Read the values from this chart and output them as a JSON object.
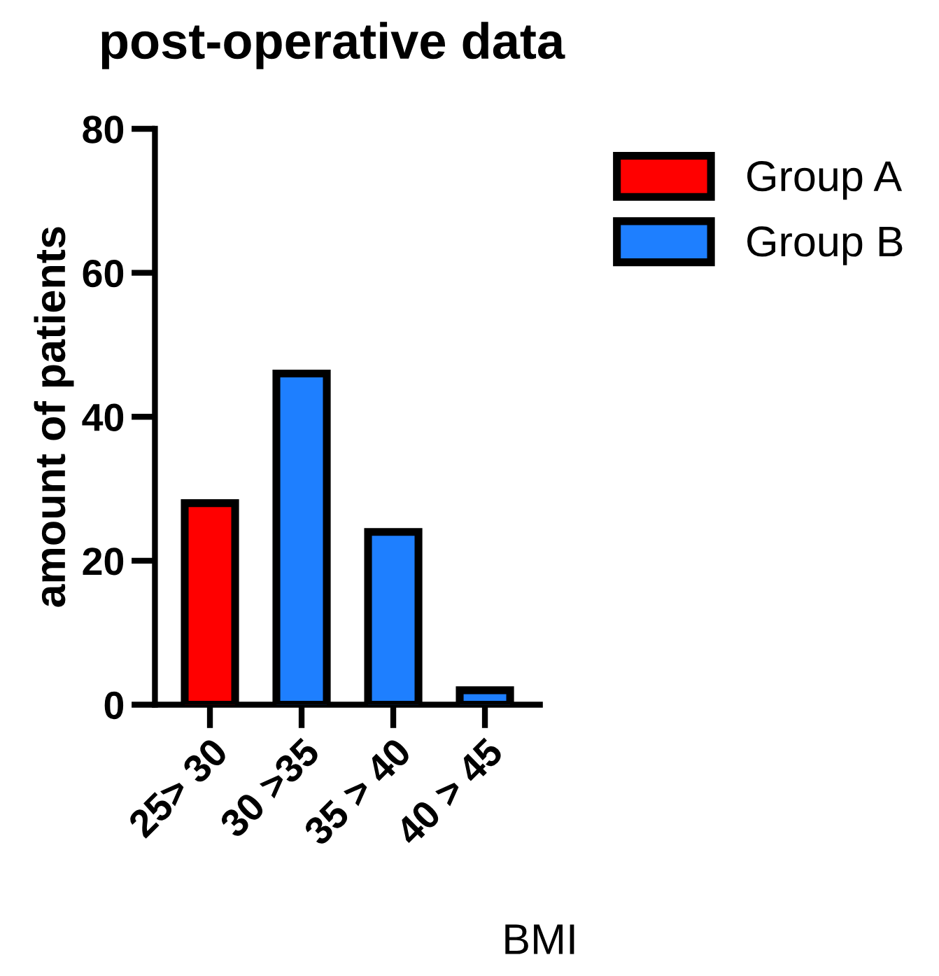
{
  "chart_data": {
    "type": "bar",
    "title": "post-operative data",
    "xlabel": "BMI",
    "ylabel": "amount of patients",
    "categories": [
      "25> 30",
      "30 >35",
      "35 > 40",
      "40 > 45"
    ],
    "series": [
      {
        "name": "Group A",
        "color": "#ff0000",
        "values": [
          28,
          null,
          null,
          null
        ]
      },
      {
        "name": "Group B",
        "color": "#1e7fff",
        "values": [
          null,
          46,
          24,
          2
        ]
      }
    ],
    "ylim": [
      0,
      80
    ],
    "yticks": [
      0,
      20,
      40,
      60,
      80
    ],
    "grid": false,
    "legend": "top right"
  }
}
